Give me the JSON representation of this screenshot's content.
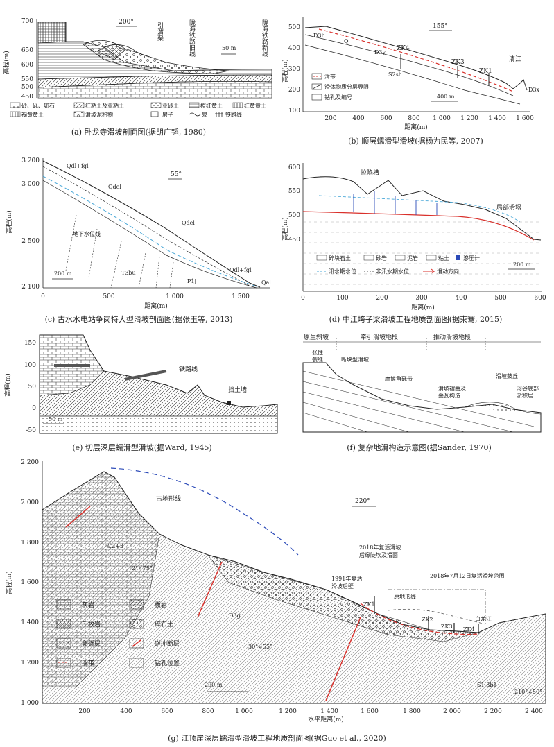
{
  "figure": {
    "panel_a": {
      "caption": "(a) 卧龙寺滑坡剖面图(据胡广韬, 1980)",
      "ylabel": "高程(m)",
      "yticks": [
        "700",
        "650",
        "600",
        "550",
        "500",
        "450"
      ],
      "direction": "200°",
      "labels": {
        "yinwei": "引渭渠",
        "old_rail": "陇海铁路旧线",
        "new_rail": "陇海铁路新线"
      },
      "scale": "50 m",
      "legend": [
        "砂、砾、卵石",
        "红粘土及亚粘土",
        "亚砂土",
        "橙红黄土",
        "红黄黄土",
        "褐黄黄土",
        "滑坡泥积物",
        "房子",
        "泉",
        "铁路线"
      ]
    },
    "panel_b": {
      "caption": "(b) 顺层蠕滑型滑坡(据杨为民等, 2007)",
      "ylabel": "高程(m)",
      "xlabel": "距离(m)",
      "yticks": [
        "500",
        "400",
        "300",
        "200",
        "100"
      ],
      "xticks": [
        "200",
        "400",
        "600",
        "800",
        "1 000",
        "1 200",
        "1 400",
        "1 600"
      ],
      "direction": "155°",
      "labels": {
        "zk4": "ZK4",
        "zk3": "ZK3",
        "zk1": "ZK1",
        "river": "清江",
        "d3h": "D3h",
        "d3y": "D3y",
        "s2sh": "S2sh",
        "q": "Q",
        "d3x": "D3x"
      },
      "scale": "400 m",
      "legend": [
        "滑带",
        "滑体物质分层界限",
        "钻孔及编号"
      ]
    },
    "panel_c": {
      "caption": "(c) 古水水电站争岗特大型滑坡剖面图(据张玉等, 2013)",
      "ylabel": "高程(m)",
      "xlabel": "距离(m)",
      "yticks": [
        "3 200",
        "3 000",
        "2 500",
        "2 100"
      ],
      "xticks": [
        "0",
        "500",
        "1 000",
        "1 500"
      ],
      "direction": "55°",
      "labels": {
        "water": "地下水位线",
        "q1": "Qdl+fgl",
        "q2": "Qdel",
        "q3": "Qdel",
        "q4": "Qdl+fgl",
        "q5": "Qal",
        "t": "T3bu",
        "p": "P1j"
      },
      "scale": "200 m"
    },
    "panel_d": {
      "caption": "(d) 中江垮子梁滑坡工程地质剖面图(据束骞, 2015)",
      "ylabel": "高程(m)",
      "xlabel": "距离(m)",
      "yticks": [
        "600",
        "550",
        "500",
        "450"
      ],
      "xticks": [
        "0",
        "100",
        "200",
        "300",
        "400",
        "500",
        "600"
      ],
      "labels": {
        "trough": "拉陷槽",
        "local": "局部滑塌"
      },
      "scale": "200 m",
      "legend": [
        "碎块石土",
        "砂岩",
        "泥岩",
        "粘土",
        "渗压计",
        "汛水期水位",
        "非汛水期水位",
        "滑动方向"
      ]
    },
    "panel_e": {
      "caption": "(e) 切层深层蠕滑型滑坡(据Ward, 1945)",
      "ylabel": "高程(m)",
      "yticks": [
        "150",
        "100",
        "50",
        "0",
        "-50"
      ],
      "labels": {
        "rail": "铁路线",
        "wall": "挡土墙"
      },
      "scale": "50 m"
    },
    "panel_f": {
      "caption": "(f) 复杂地滑构造示意图(据Sander, 1970)",
      "labels": {
        "orig": "原生斜坡",
        "pull": "牵引滑坡地段",
        "push": "推动滑坡地段",
        "crack1": "张性",
        "crack2": "裂缝",
        "block": "断块型滑坡",
        "breccia": "摩擦角砾带",
        "fold1": "滑坡褶曲及",
        "fold2": "叠瓦构造",
        "bulge": "滑坡鼓丘",
        "river1": "河谷底部",
        "river2": "淤积层"
      }
    },
    "panel_g": {
      "caption": "(g) 江顶崖深层蠕滑型滑坡工程地质剖面图(据Guo et al., 2020)",
      "ylabel": "高程(m)",
      "xlabel": "水平距离(m)",
      "yticks": [
        "2 200",
        "2 000",
        "1 800",
        "1 600",
        "1 400",
        "1 200",
        "1 000"
      ],
      "xticks": [
        "200",
        "400",
        "600",
        "800",
        "1 000",
        "1 200",
        "1 400",
        "1 600",
        "1 800",
        "2 000",
        "2 200",
        "2 400"
      ],
      "direction": "220°",
      "labels": {
        "old_terrain": "古地形线",
        "c": "C2+3",
        "d": "D3g",
        "s": "S1-3b1",
        "dip1": "2°∠75°",
        "dip2": "30°∠55°",
        "dip3": "210°∠50°",
        "l1991a": "1991年复活",
        "l1991b": "滑坡后壁",
        "l2018a": "2018年复活滑坡",
        "l2018b": "后缘陡坎及滑面",
        "extent": "2018年7月12日复活滑坡范围",
        "orig_terrain": "原地形线",
        "river": "白龙江",
        "zk1": "ZK1",
        "zk2": "ZK2",
        "zk3": "ZK3",
        "zk4": "ZK4"
      },
      "scale": "200 m",
      "legend": [
        "灰岩",
        "板岩",
        "千枚岩",
        "碎石土",
        "卵砾层",
        "逆冲断层",
        "滑带",
        "钻孔位置"
      ]
    },
    "colors": {
      "red": "#d9302b",
      "blue": "#2b4ab8",
      "water": "#4aa8d8",
      "ink": "#222222"
    }
  }
}
